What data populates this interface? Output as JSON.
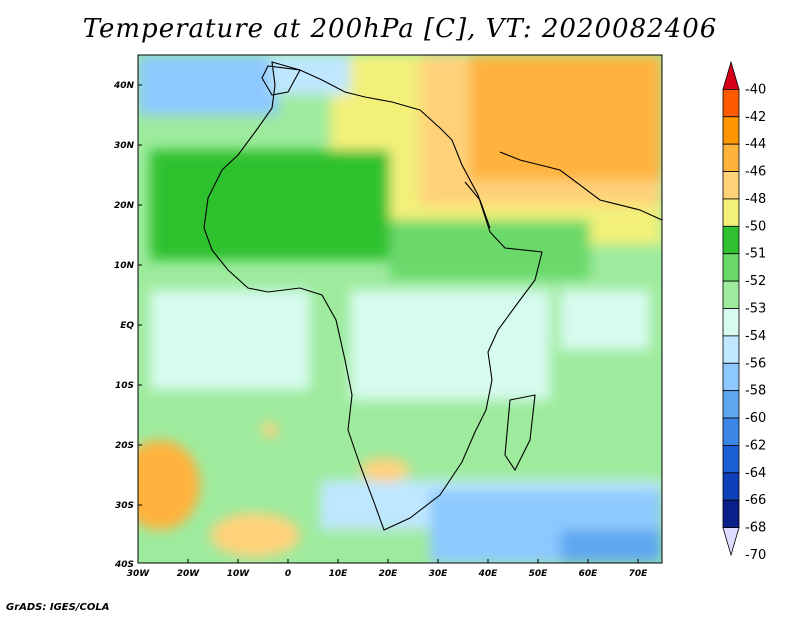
{
  "title": "Temperature at 200hPa [C], VT: 2020082406",
  "footer": "GrADS: IGES/COLA",
  "map": {
    "lat_labels": [
      "40N",
      "30N",
      "20N",
      "10N",
      "EQ",
      "10S",
      "20S",
      "30S",
      "40S"
    ],
    "lon_labels": [
      "30W",
      "20W",
      "10W",
      "0",
      "10E",
      "20E",
      "30E",
      "40E",
      "50E",
      "60E",
      "70E"
    ]
  },
  "colorbar": {
    "labels": [
      "-40",
      "-42",
      "-44",
      "-46",
      "-48",
      "-50",
      "-51",
      "-52",
      "-53",
      "-54",
      "-56",
      "-58",
      "-60",
      "-62",
      "-64",
      "-66",
      "-68",
      "-70"
    ],
    "colors": [
      "#d6001a",
      "#ff5a00",
      "#ff9600",
      "#ffb23c",
      "#ffd27a",
      "#f3f07a",
      "#2fc12f",
      "#6ad96a",
      "#9eeb9e",
      "#d7fbf0",
      "#bfe7ff",
      "#8dc9ff",
      "#5fa8f0",
      "#3b86e6",
      "#1a5fd6",
      "#0f3fb8",
      "#0a1f8a",
      "#dcdcff"
    ]
  }
}
